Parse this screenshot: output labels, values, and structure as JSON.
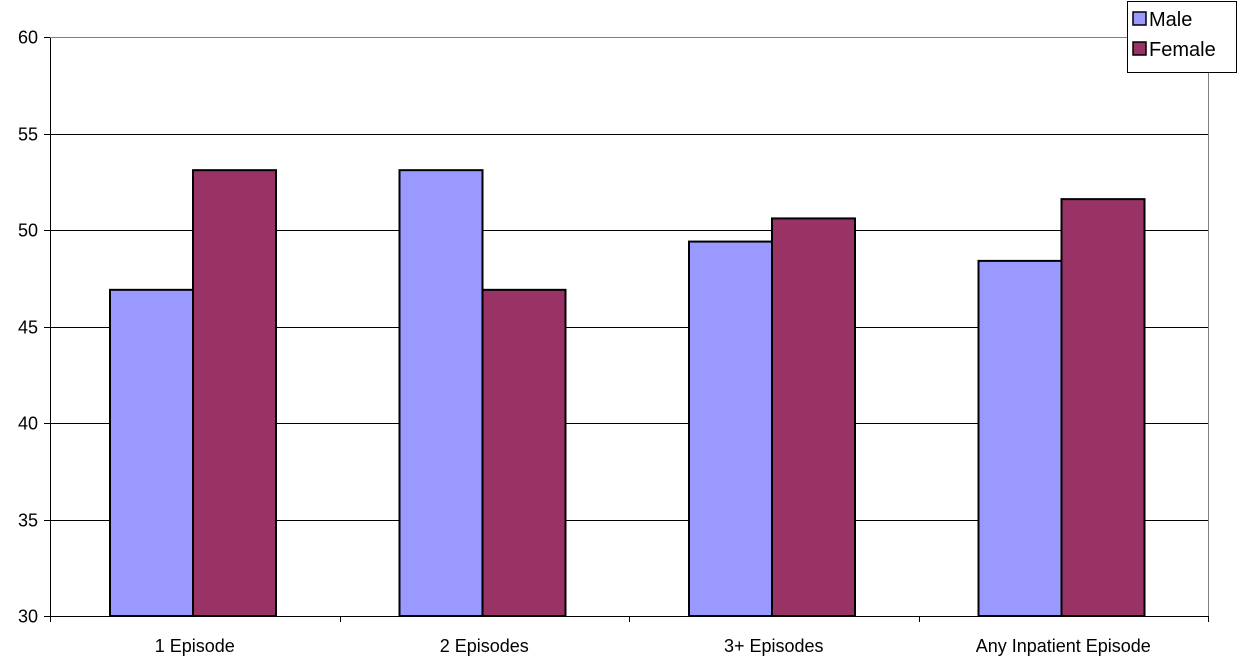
{
  "chart_data": {
    "type": "bar",
    "categories": [
      "1 Episode",
      "2 Episodes",
      "3+ Episodes",
      "Any Inpatient Episode"
    ],
    "series": [
      {
        "name": "Male",
        "color": "#9999FF",
        "values": [
          46.9,
          53.1,
          49.4,
          48.4
        ]
      },
      {
        "name": "Female",
        "color": "#993366",
        "values": [
          53.1,
          46.9,
          50.6,
          51.6
        ]
      }
    ],
    "ylim": [
      30,
      60
    ],
    "yticks": [
      "30",
      "35",
      "40",
      "45",
      "50",
      "55",
      "60"
    ],
    "grid": true,
    "legend_position": "top-right",
    "title": "",
    "xlabel": "",
    "ylabel": ""
  }
}
